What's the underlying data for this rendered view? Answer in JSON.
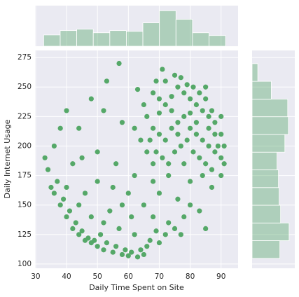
{
  "chart_data": [
    {
      "type": "scatter",
      "xlabel": "Daily Time Spent on Site",
      "ylabel": "Daily Internet Usage",
      "color": "#55a868",
      "grid": true,
      "xlim": [
        29.8,
        95.5
      ],
      "ylim": [
        96.4,
        281
      ],
      "xticks": [
        30,
        40,
        50,
        60,
        70,
        80,
        90
      ],
      "yticks": [
        100,
        125,
        150,
        175,
        200,
        225,
        250,
        275
      ],
      "x": [
        36,
        38,
        40,
        42,
        44,
        46,
        48,
        50,
        52,
        55,
        58,
        60,
        63,
        65,
        37,
        39,
        41,
        43,
        45,
        47,
        49,
        51,
        53,
        56,
        59,
        61,
        64,
        66,
        34,
        35,
        40,
        44,
        48,
        52,
        57,
        62,
        67,
        70,
        72,
        54,
        58,
        61,
        46,
        50,
        55,
        60,
        65,
        68,
        73,
        75,
        78,
        80,
        33,
        36,
        38,
        42,
        45,
        50,
        56,
        62,
        68,
        44,
        40,
        53,
        57,
        63,
        48,
        52,
        58,
        66,
        70,
        76,
        83,
        87,
        90,
        85,
        77,
        69,
        68,
        70,
        72,
        74,
        76,
        78,
        80,
        82,
        84,
        86,
        88,
        90,
        66,
        68,
        70,
        72,
        74,
        76,
        78,
        80,
        82,
        84,
        86,
        88,
        90,
        65,
        67,
        69,
        71,
        73,
        75,
        77,
        79,
        81,
        83,
        85,
        87,
        89,
        91,
        72,
        75,
        77,
        79,
        81,
        83,
        85,
        74,
        80,
        86,
        70,
        76,
        82,
        88,
        78,
        84,
        80,
        73,
        68,
        64,
        62,
        71,
        69,
        87,
        91,
        90,
        85
      ],
      "y": [
        160,
        150,
        140,
        130,
        125,
        120,
        118,
        115,
        112,
        110,
        108,
        107,
        106,
        108,
        170,
        155,
        145,
        135,
        128,
        122,
        120,
        125,
        118,
        115,
        112,
        110,
        112,
        115,
        180,
        165,
        165,
        150,
        140,
        135,
        130,
        125,
        120,
        118,
        125,
        145,
        150,
        140,
        160,
        170,
        165,
        160,
        150,
        140,
        135,
        130,
        140,
        150,
        190,
        200,
        215,
        185,
        190,
        195,
        185,
        175,
        170,
        215,
        230,
        255,
        270,
        248,
        240,
        230,
        220,
        195,
        160,
        155,
        145,
        165,
        175,
        130,
        125,
        128,
        245,
        240,
        235,
        230,
        250,
        245,
        240,
        235,
        230,
        225,
        220,
        210,
        225,
        215,
        210,
        205,
        215,
        220,
        225,
        215,
        210,
        205,
        200,
        195,
        190,
        235,
        205,
        195,
        190,
        185,
        195,
        200,
        205,
        195,
        190,
        185,
        180,
        200,
        185,
        255,
        260,
        258,
        252,
        250,
        245,
        240,
        242,
        228,
        215,
        228,
        210,
        220,
        210,
        185,
        175,
        170,
        175,
        185,
        205,
        215,
        265,
        255,
        230,
        200,
        225,
        250
      ]
    },
    {
      "type": "histogram",
      "orientation": "vertical",
      "color": "#55a868",
      "bins": [
        32.6,
        37.95,
        43.3,
        48.65,
        54.0,
        59.35,
        64.7,
        70.05,
        75.4,
        80.75,
        86.1,
        91.45
      ],
      "counts": [
        57,
        79,
        86,
        68,
        79,
        75,
        118,
        179,
        136,
        68,
        54
      ],
      "ylim": [
        0,
        205
      ]
    },
    {
      "type": "histogram",
      "orientation": "horizontal",
      "color": "#55a868",
      "bins": [
        104.8,
        119.8,
        134.8,
        149.8,
        164.8,
        179.8,
        194.8,
        209.8,
        224.8,
        239.8,
        254.8,
        269.8
      ],
      "counts": [
        78,
        104,
        80,
        76,
        74,
        70,
        92,
        102,
        100,
        54,
        16
      ],
      "xlim": [
        0,
        120
      ]
    }
  ]
}
